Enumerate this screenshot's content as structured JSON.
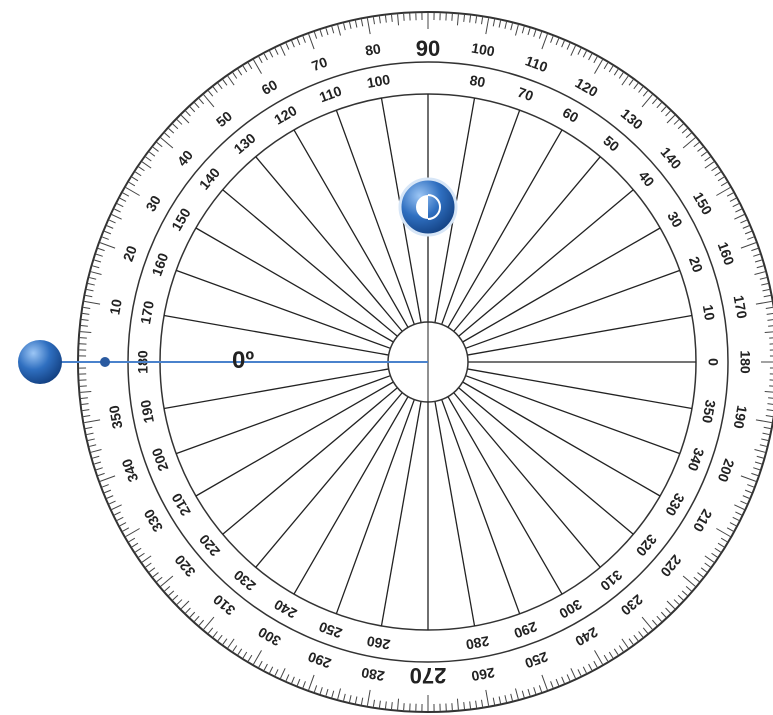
{
  "outer_scale": {
    "labels": [
      "10",
      "20",
      "30",
      "40",
      "50",
      "60",
      "70",
      "80",
      "100",
      "110",
      "120",
      "130",
      "140",
      "150",
      "160",
      "170",
      "180",
      "190",
      "200",
      "210",
      "220",
      "230",
      "240",
      "250",
      "260",
      "280",
      "290",
      "300",
      "310",
      "320",
      "330",
      "340",
      "350"
    ],
    "cardinal_labels": [
      "90",
      "270"
    ]
  },
  "inner_scale": {
    "labels": [
      "0",
      "10",
      "20",
      "30",
      "40",
      "50",
      "60",
      "70",
      "80",
      "100",
      "110",
      "120",
      "130",
      "140",
      "150",
      "160",
      "170",
      "180",
      "190",
      "200",
      "210",
      "220",
      "230",
      "240",
      "250",
      "260",
      "280",
      "290",
      "300",
      "310",
      "320",
      "330",
      "340",
      "350"
    ]
  },
  "angle_readout": "0º"
}
